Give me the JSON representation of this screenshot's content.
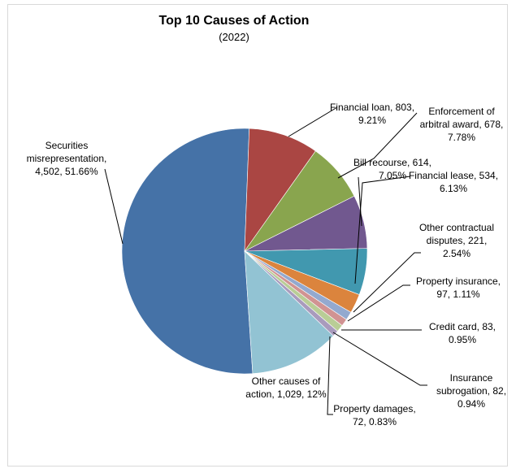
{
  "chart_data": {
    "type": "pie",
    "title": "Top 10 Causes of Action",
    "subtitle": "(2022)",
    "slices": [
      {
        "name": "Securities misrepresentation",
        "value": 4502,
        "percent": "51.66%",
        "color": "#4572a7",
        "label_lines": [
          "Securities",
          "misrepresentation,",
          "4,502, 51.66%"
        ]
      },
      {
        "name": "Financial loan",
        "value": 803,
        "percent": "9.21%",
        "color": "#aa4643",
        "label_lines": [
          "Financial loan, 803,",
          "9.21%"
        ]
      },
      {
        "name": "Enforcement of arbitral award",
        "value": 678,
        "percent": "7.78%",
        "color": "#89a54e",
        "label_lines": [
          "Enforcement of",
          "arbitral award, 678,",
          "7.78%"
        ]
      },
      {
        "name": "Bill recourse",
        "value": 614,
        "percent": "7.05%",
        "color": "#71588f",
        "label_lines": [
          "Bill recourse, 614,",
          "7.05%"
        ]
      },
      {
        "name": "Financial lease",
        "value": 534,
        "percent": "6.13%",
        "color": "#4198af",
        "label_lines": [
          "Financial lease, 534,",
          "6.13%"
        ]
      },
      {
        "name": "Other contractual disputes",
        "value": 221,
        "percent": "2.54%",
        "color": "#db843d",
        "label_lines": [
          "Other contractual",
          "disputes, 221,",
          "2.54%"
        ]
      },
      {
        "name": "Property insurance",
        "value": 97,
        "percent": "1.11%",
        "color": "#93a9cf",
        "label_lines": [
          "Property insurance,",
          "97, 1.11%"
        ]
      },
      {
        "name": "Credit card",
        "value": 83,
        "percent": "0.95%",
        "color": "#d19392",
        "label_lines": [
          "Credit card, 83,",
          "0.95%"
        ]
      },
      {
        "name": "Insurance subrogation",
        "value": 82,
        "percent": "0.94%",
        "color": "#b9cd96",
        "label_lines": [
          "Insurance",
          "subrogation, 82,",
          "0.94%"
        ]
      },
      {
        "name": "Property damages",
        "value": 72,
        "percent": "0.83%",
        "color": "#a99bbd",
        "label_lines": [
          "Property damages,",
          "72, 0.83%"
        ]
      },
      {
        "name": "Other causes of action",
        "value": 1029,
        "percent": "12%",
        "color": "#92c3d3",
        "label_lines": [
          "Other causes of",
          "action, 1,029, 12%"
        ]
      }
    ]
  }
}
